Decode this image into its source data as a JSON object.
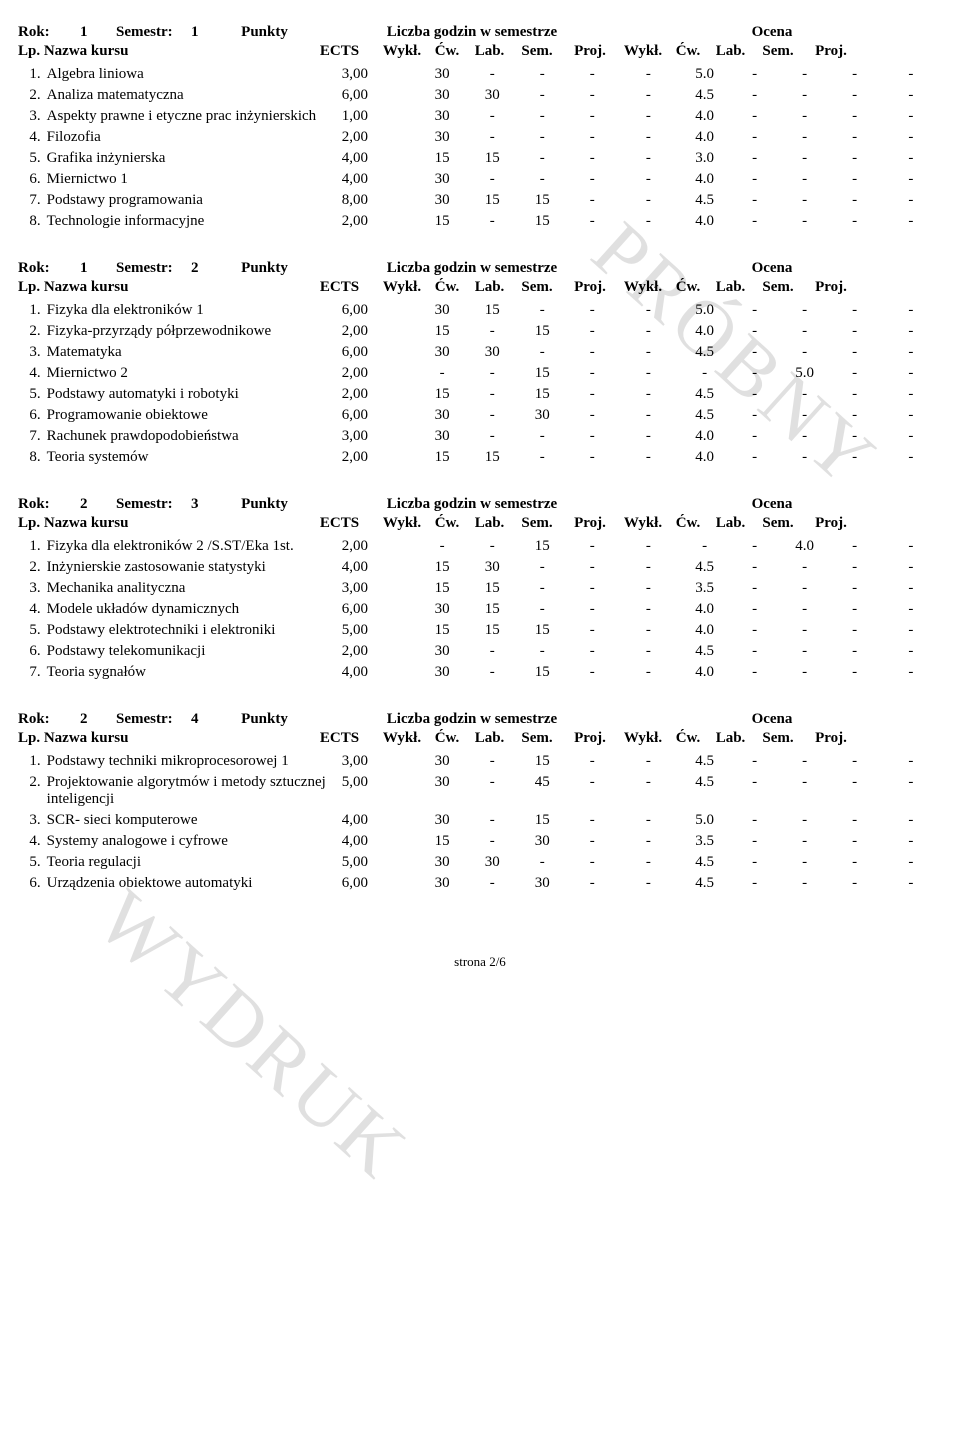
{
  "labels": {
    "rok": "Rok:",
    "semestr": "Semestr:",
    "punkty": "Punkty",
    "liczba": "Liczba godzin w semestrze",
    "ocena": "Ocena",
    "lp": "Lp.",
    "nazwa": "Nazwa kursu",
    "ects": "ECTS",
    "wykl": "Wykł.",
    "cw": "Ćw.",
    "lab": "Lab.",
    "sem": "Sem.",
    "proj": "Proj."
  },
  "watermarks": {
    "w1": "PRÓBNY",
    "w2": "WYDRUK"
  },
  "footer": "strona 2/6",
  "semesters": [
    {
      "rok": "1",
      "semestr": "1",
      "rows": [
        {
          "lp": "1.",
          "name": "Algebra liniowa",
          "ects": "3,00",
          "h": [
            "30",
            "-",
            "-",
            "-",
            "-"
          ],
          "g": [
            "5.0",
            "-",
            "-",
            "-",
            "-"
          ]
        },
        {
          "lp": "2.",
          "name": "Analiza matematyczna",
          "ects": "6,00",
          "h": [
            "30",
            "30",
            "-",
            "-",
            "-"
          ],
          "g": [
            "4.5",
            "-",
            "-",
            "-",
            "-"
          ]
        },
        {
          "lp": "3.",
          "name": "Aspekty prawne i etyczne prac inżynierskich",
          "ects": "1,00",
          "h": [
            "30",
            "-",
            "-",
            "-",
            "-"
          ],
          "g": [
            "4.0",
            "-",
            "-",
            "-",
            "-"
          ]
        },
        {
          "lp": "4.",
          "name": "Filozofia",
          "ects": "2,00",
          "h": [
            "30",
            "-",
            "-",
            "-",
            "-"
          ],
          "g": [
            "4.0",
            "-",
            "-",
            "-",
            "-"
          ]
        },
        {
          "lp": "5.",
          "name": "Grafika inżynierska",
          "ects": "4,00",
          "h": [
            "15",
            "15",
            "-",
            "-",
            "-"
          ],
          "g": [
            "3.0",
            "-",
            "-",
            "-",
            "-"
          ]
        },
        {
          "lp": "6.",
          "name": "Miernictwo 1",
          "ects": "4,00",
          "h": [
            "30",
            "-",
            "-",
            "-",
            "-"
          ],
          "g": [
            "4.0",
            "-",
            "-",
            "-",
            "-"
          ]
        },
        {
          "lp": "7.",
          "name": "Podstawy programowania",
          "ects": "8,00",
          "h": [
            "30",
            "15",
            "15",
            "-",
            "-"
          ],
          "g": [
            "4.5",
            "-",
            "-",
            "-",
            "-"
          ]
        },
        {
          "lp": "8.",
          "name": "Technologie informacyjne",
          "ects": "2,00",
          "h": [
            "15",
            "-",
            "15",
            "-",
            "-"
          ],
          "g": [
            "4.0",
            "-",
            "-",
            "-",
            "-"
          ]
        }
      ]
    },
    {
      "rok": "1",
      "semestr": "2",
      "rows": [
        {
          "lp": "1.",
          "name": "Fizyka dla elektroników 1",
          "ects": "6,00",
          "h": [
            "30",
            "15",
            "-",
            "-",
            "-"
          ],
          "g": [
            "5.0",
            "-",
            "-",
            "-",
            "-"
          ]
        },
        {
          "lp": "2.",
          "name": "Fizyka-przyrządy półprzewodnikowe",
          "ects": "2,00",
          "h": [
            "15",
            "-",
            "15",
            "-",
            "-"
          ],
          "g": [
            "4.0",
            "-",
            "-",
            "-",
            "-"
          ]
        },
        {
          "lp": "3.",
          "name": "Matematyka",
          "ects": "6,00",
          "h": [
            "30",
            "30",
            "-",
            "-",
            "-"
          ],
          "g": [
            "4.5",
            "-",
            "-",
            "-",
            "-"
          ]
        },
        {
          "lp": "4.",
          "name": "Miernictwo 2",
          "ects": "2,00",
          "h": [
            "-",
            "-",
            "15",
            "-",
            "-"
          ],
          "g": [
            "-",
            "-",
            "5.0",
            "-",
            "-"
          ]
        },
        {
          "lp": "5.",
          "name": "Podstawy automatyki i robotyki",
          "ects": "2,00",
          "h": [
            "15",
            "-",
            "15",
            "-",
            "-"
          ],
          "g": [
            "4.5",
            "-",
            "-",
            "-",
            "-"
          ]
        },
        {
          "lp": "6.",
          "name": "Programowanie obiektowe",
          "ects": "6,00",
          "h": [
            "30",
            "-",
            "30",
            "-",
            "-"
          ],
          "g": [
            "4.5",
            "-",
            "-",
            "-",
            "-"
          ]
        },
        {
          "lp": "7.",
          "name": "Rachunek prawdopodobieństwa",
          "ects": "3,00",
          "h": [
            "30",
            "-",
            "-",
            "-",
            "-"
          ],
          "g": [
            "4.0",
            "-",
            "-",
            "-",
            "-"
          ]
        },
        {
          "lp": "8.",
          "name": "Teoria systemów",
          "ects": "2,00",
          "h": [
            "15",
            "15",
            "-",
            "-",
            "-"
          ],
          "g": [
            "4.0",
            "-",
            "-",
            "-",
            "-"
          ]
        }
      ]
    },
    {
      "rok": "2",
      "semestr": "3",
      "rows": [
        {
          "lp": "1.",
          "name": "Fizyka dla elektroników 2 /S.ST/Eka 1st.",
          "ects": "2,00",
          "h": [
            "-",
            "-",
            "15",
            "-",
            "-"
          ],
          "g": [
            "-",
            "-",
            "4.0",
            "-",
            "-"
          ]
        },
        {
          "lp": "2.",
          "name": "Inżynierskie zastosowanie statystyki",
          "ects": "4,00",
          "h": [
            "15",
            "30",
            "-",
            "-",
            "-"
          ],
          "g": [
            "4.5",
            "-",
            "-",
            "-",
            "-"
          ]
        },
        {
          "lp": "3.",
          "name": "Mechanika analityczna",
          "ects": "3,00",
          "h": [
            "15",
            "15",
            "-",
            "-",
            "-"
          ],
          "g": [
            "3.5",
            "-",
            "-",
            "-",
            "-"
          ]
        },
        {
          "lp": "4.",
          "name": "Modele układów dynamicznych",
          "ects": "6,00",
          "h": [
            "30",
            "15",
            "-",
            "-",
            "-"
          ],
          "g": [
            "4.0",
            "-",
            "-",
            "-",
            "-"
          ]
        },
        {
          "lp": "5.",
          "name": "Podstawy elektrotechniki i elektroniki",
          "ects": "5,00",
          "h": [
            "15",
            "15",
            "15",
            "-",
            "-"
          ],
          "g": [
            "4.0",
            "-",
            "-",
            "-",
            "-"
          ]
        },
        {
          "lp": "6.",
          "name": "Podstawy telekomunikacji",
          "ects": "2,00",
          "h": [
            "30",
            "-",
            "-",
            "-",
            "-"
          ],
          "g": [
            "4.5",
            "-",
            "-",
            "-",
            "-"
          ]
        },
        {
          "lp": "7.",
          "name": "Teoria sygnałów",
          "ects": "4,00",
          "h": [
            "30",
            "-",
            "15",
            "-",
            "-"
          ],
          "g": [
            "4.0",
            "-",
            "-",
            "-",
            "-"
          ]
        }
      ]
    },
    {
      "rok": "2",
      "semestr": "4",
      "rows": [
        {
          "lp": "1.",
          "name": "Podstawy techniki mikroprocesorowej 1",
          "ects": "3,00",
          "h": [
            "30",
            "-",
            "15",
            "-",
            "-"
          ],
          "g": [
            "4.5",
            "-",
            "-",
            "-",
            "-"
          ]
        },
        {
          "lp": "2.",
          "name": "Projektowanie algorytmów i metody sztucznej inteligencji",
          "ects": "5,00",
          "h": [
            "30",
            "-",
            "45",
            "-",
            "-"
          ],
          "g": [
            "4.5",
            "-",
            "-",
            "-",
            "-"
          ]
        },
        {
          "lp": "3.",
          "name": "SCR- sieci komputerowe",
          "ects": "4,00",
          "h": [
            "30",
            "-",
            "15",
            "-",
            "-"
          ],
          "g": [
            "5.0",
            "-",
            "-",
            "-",
            "-"
          ]
        },
        {
          "lp": "4.",
          "name": "Systemy analogowe i cyfrowe",
          "ects": "4,00",
          "h": [
            "15",
            "-",
            "30",
            "-",
            "-"
          ],
          "g": [
            "3.5",
            "-",
            "-",
            "-",
            "-"
          ]
        },
        {
          "lp": "5.",
          "name": "Teoria regulacji",
          "ects": "5,00",
          "h": [
            "30",
            "30",
            "-",
            "-",
            "-"
          ],
          "g": [
            "4.5",
            "-",
            "-",
            "-",
            "-"
          ]
        },
        {
          "lp": "6.",
          "name": "Urządzenia obiektowe automatyki",
          "ects": "6,00",
          "h": [
            "30",
            "-",
            "30",
            "-",
            "-"
          ],
          "g": [
            "4.5",
            "-",
            "-",
            "-",
            "-"
          ]
        }
      ]
    }
  ]
}
